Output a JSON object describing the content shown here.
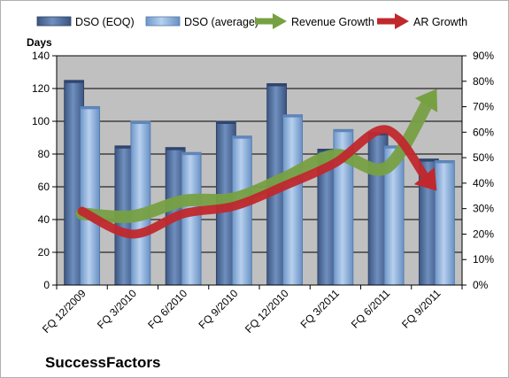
{
  "chart_data": {
    "type": "bar",
    "categories": [
      "FQ 12/2009",
      "FQ 3/2010",
      "FQ 6/2010",
      "FQ 9/2010",
      "FQ 12/2010",
      "FQ 3/2011",
      "FQ 6/2011",
      "FQ 9/2011"
    ],
    "series": [
      {
        "name": "DSO (EOQ)",
        "type": "bar",
        "axis": "left",
        "values": [
          125,
          85,
          84,
          100,
          123,
          83,
          93,
          77
        ]
      },
      {
        "name": "DSO (average)",
        "type": "bar",
        "axis": "left",
        "values": [
          109,
          100,
          81,
          91,
          104,
          95,
          85,
          76
        ]
      },
      {
        "name": "Revenue Growth",
        "type": "line-arrow",
        "axis": "right",
        "values": [
          28,
          27,
          33,
          34,
          42,
          51,
          46,
          77
        ]
      },
      {
        "name": "AR Growth",
        "type": "line-arrow",
        "axis": "right",
        "values": [
          29,
          20,
          28,
          31,
          39,
          48,
          61,
          37
        ]
      }
    ],
    "ylabel": "Days",
    "ylim": [
      0,
      140
    ],
    "yticks": [
      "0",
      "20",
      "40",
      "60",
      "80",
      "100",
      "120",
      "140"
    ],
    "y2lim": [
      0,
      90
    ],
    "y2ticks": [
      "0%",
      "10%",
      "20%",
      "30%",
      "40%",
      "50%",
      "60%",
      "70%",
      "80%",
      "90%"
    ],
    "legend_position": "top",
    "grid": true,
    "colors": {
      "dso_eoq": "#4f6fa0",
      "dso_avg": "#8fb4de",
      "revenue_growth": "#77a043",
      "ar_growth": "#c0282d",
      "plot_background": "#c0c0c0",
      "page_background": "#ffffff"
    },
    "footer": "SuccessFactors"
  }
}
